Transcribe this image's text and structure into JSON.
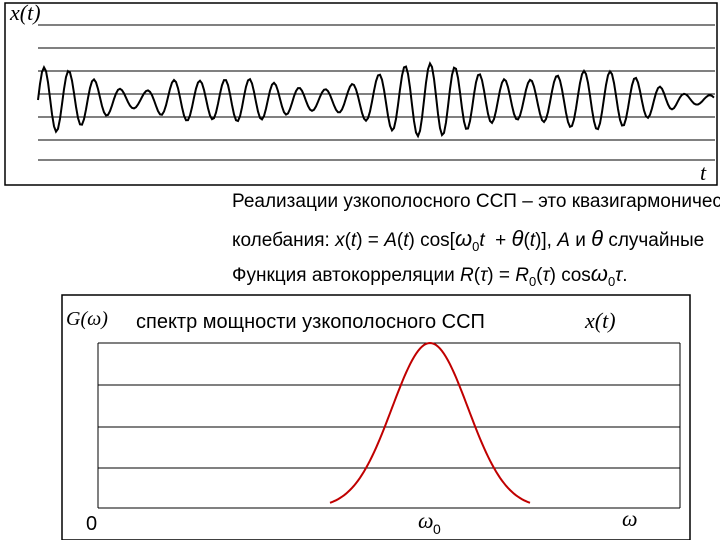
{
  "top_figure": {
    "y_label": "x(t)",
    "x_label": "t"
  },
  "text": {
    "line1": "Реализации узкополосного ССП – это квазигармонические",
    "line2": [
      "колебания: ",
      "x",
      "(",
      "t",
      ") = ",
      "A",
      "(",
      "t",
      ") cos[",
      "ω",
      "0",
      "t",
      "  + ",
      "θ",
      "(",
      "t",
      ")], ",
      "A",
      " и ",
      "θ",
      " случайные"
    ],
    "line3": [
      "Функция автокорреляции ",
      "R",
      "(",
      "τ",
      ") = ",
      "R",
      "0",
      "(",
      "τ",
      ") cos",
      "ω",
      "0",
      "τ",
      "."
    ]
  },
  "bottom_figure": {
    "y_label": "G(ω)",
    "title": "спектр мощности узкополосного ССП",
    "title_symbol": "x(t)",
    "origin": "0",
    "peak_label": "ω",
    "peak_label_sub": "0",
    "x_label": "ω"
  }
}
